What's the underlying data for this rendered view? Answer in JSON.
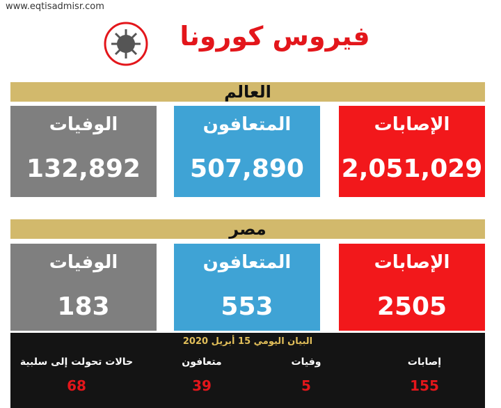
{
  "header": {
    "website": "www.eqtisadmisr.com",
    "title": "فيروس كورونا"
  },
  "world": {
    "title": "العالم",
    "cards": [
      {
        "label": "الإصابات",
        "value": "2,051,029"
      },
      {
        "label": "المتعافون",
        "value": "507,890"
      },
      {
        "label": "الوفيات",
        "value": "132,892"
      }
    ]
  },
  "egypt": {
    "title": "مصر",
    "cards": [
      {
        "label": "الإصابات",
        "value": "2505"
      },
      {
        "label": "المتعافون",
        "value": "553"
      },
      {
        "label": "الوفيات",
        "value": "183"
      }
    ]
  },
  "daily": {
    "title": "البيان اليومي 15 أبريل 2020",
    "items": [
      {
        "label": "إصابات",
        "value": "155"
      },
      {
        "label": "وفيات",
        "value": "5"
      },
      {
        "label": "متعافون",
        "value": "39"
      },
      {
        "label": "حالات تحولت إلى سلبية",
        "value": "68"
      }
    ]
  }
}
